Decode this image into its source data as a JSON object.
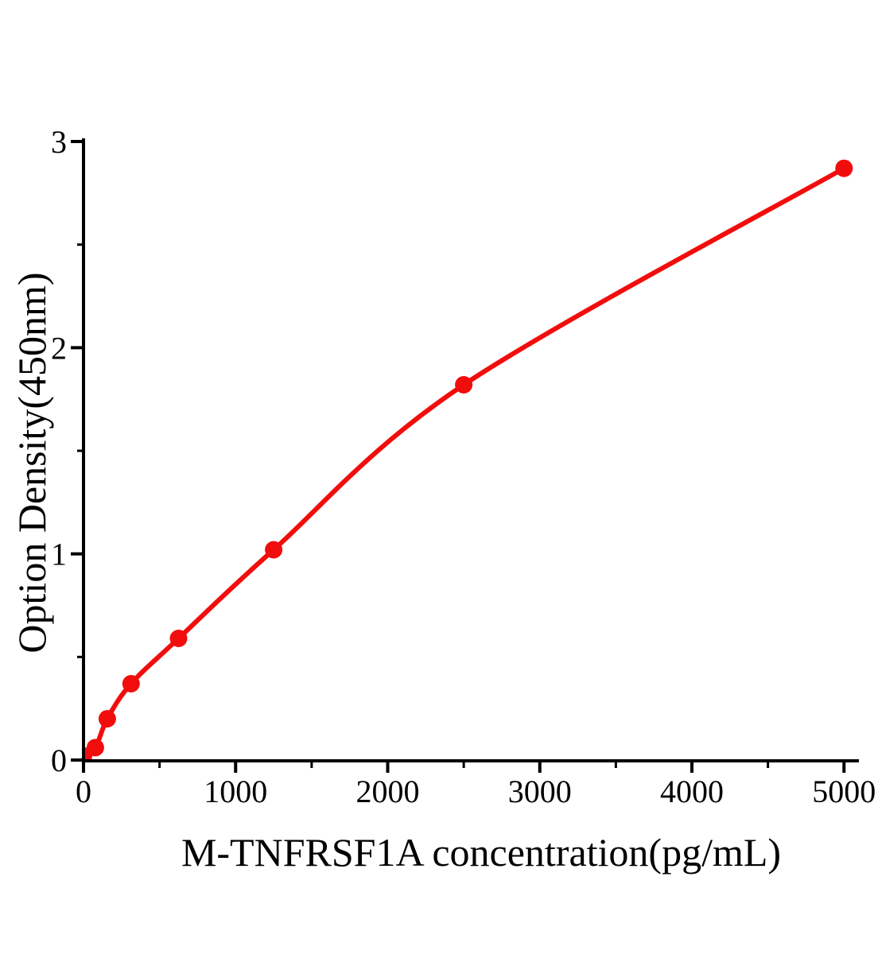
{
  "chart_data": {
    "type": "line",
    "title": "",
    "xlabel": "M-TNFRSF1A concentration(pg/mL)",
    "ylabel": "Option Density(450nm)",
    "x": [
      0,
      78.125,
      156.25,
      312.5,
      625,
      1250,
      2500,
      5000
    ],
    "y": [
      0.02,
      0.06,
      0.2,
      0.37,
      0.59,
      1.02,
      1.82,
      2.87
    ],
    "xlim": [
      0,
      5100
    ],
    "ylim": [
      0,
      3
    ],
    "xticks": [
      0,
      1000,
      2000,
      3000,
      4000,
      5000
    ],
    "xtick_labels": [
      "0",
      "1000",
      "2000",
      "3000",
      "4000",
      "5000"
    ],
    "xticks_minor": [
      500,
      1500,
      2500,
      3500,
      4500
    ],
    "yticks": [
      0,
      1,
      2,
      3
    ],
    "ytick_labels": [
      "0",
      "1",
      "2",
      "3"
    ],
    "yticks_minor": [
      0.5,
      1.5,
      2.5
    ],
    "grid": false,
    "legend": false,
    "marker": "circle",
    "colors": {
      "curve": "#f20d0d",
      "marker": "#f20d0d",
      "axis": "#000000",
      "text": "#000000",
      "background": "#ffffff"
    }
  }
}
